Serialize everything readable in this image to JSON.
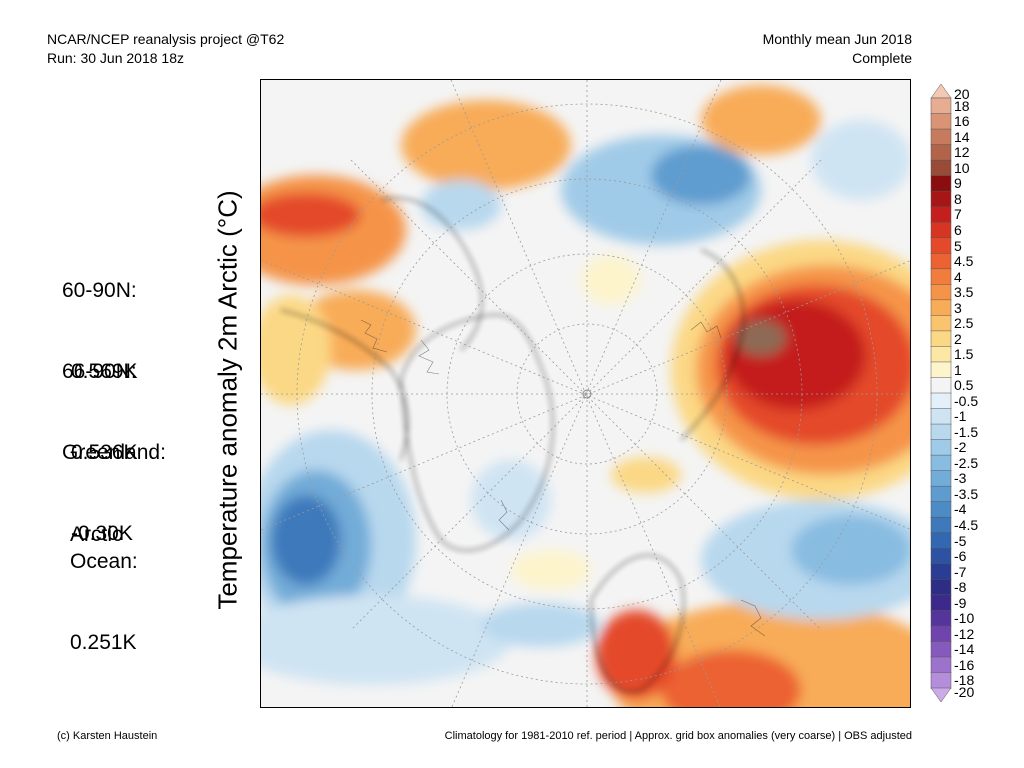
{
  "header": {
    "left_line1": "NCAR/NCEP reanalysis project @T62",
    "left_line2": "Run: 30 Jun 2018 18z",
    "right_line1": "Monthly mean Jun 2018",
    "right_line2": "Complete"
  },
  "stats": [
    {
      "label": "60-90N:",
      "value": "0.569K"
    },
    {
      "label": "66-90N:",
      "value": "0.536K"
    },
    {
      "label": "Greenland:",
      "value": "-0.30K"
    },
    {
      "label": "Arctic\nOcean:",
      "value": "0.251K"
    }
  ],
  "y_axis_label": "Temperature anomaly 2m Arctic (°C)",
  "colorbar": {
    "labels": [
      "20",
      "18",
      "16",
      "14",
      "12",
      "10",
      "9",
      "8",
      "7",
      "6",
      "5",
      "4.5",
      "4",
      "3.5",
      "3",
      "2.5",
      "2",
      "1.5",
      "1",
      "0.5",
      "-0.5",
      "-1",
      "-1.5",
      "-2",
      "-2.5",
      "-3",
      "-3.5",
      "-4",
      "-4.5",
      "-5",
      "-6",
      "-7",
      "-8",
      "-9",
      "-10",
      "-12",
      "-14",
      "-16",
      "-18",
      "-20"
    ],
    "colors": [
      "#f3c9b4",
      "#e6ad92",
      "#d99375",
      "#c77b5e",
      "#b1644a",
      "#9a4b37",
      "#8a0e10",
      "#a71616",
      "#c41e1e",
      "#d83424",
      "#e44a2a",
      "#ec6232",
      "#f17c3b",
      "#f59448",
      "#f8ac58",
      "#fac46e",
      "#fbd885",
      "#fce8a4",
      "#fdf4cc",
      "#f4f4f4",
      "#e4f0f9",
      "#cfe4f3",
      "#b8d8ee",
      "#a0cbe8",
      "#88bce1",
      "#72acd8",
      "#5e9ccf",
      "#4c8bc5",
      "#3d79bb",
      "#3467b1",
      "#2d52a3",
      "#293d94",
      "#2e2d86",
      "#3b2a8c",
      "#55359c",
      "#6f45ad",
      "#8659bd",
      "#9d72cc",
      "#b48ddb",
      "#cbaae8"
    ]
  },
  "footer": {
    "left": "(c) Karsten Haustein",
    "right": "Climatology for 1981-2010 ref. period | Approx. grid box anomalies (very coarse) | OBS adjusted"
  }
}
